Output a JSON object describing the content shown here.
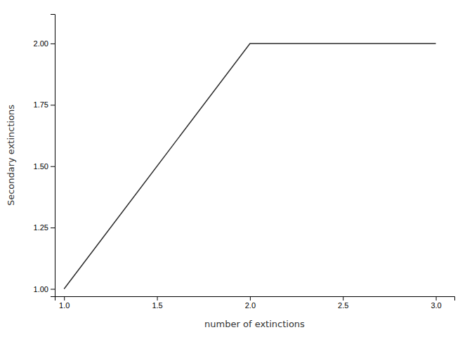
{
  "chart_data": {
    "type": "line",
    "x": [
      1,
      2,
      3
    ],
    "y": [
      1,
      2,
      2
    ],
    "xlabel": "number of extinctions",
    "ylabel": "Secondary extinctions",
    "color": "#2b2b2b",
    "xlim": [
      0.95,
      3.1
    ],
    "ylim": [
      0.97,
      2.12
    ],
    "xticks": [
      {
        "value": 1.0,
        "label": "1.0"
      },
      1.5,
      {
        "value": 2.0,
        "label": "2.0"
      },
      2.5,
      {
        "value": 3.0,
        "label": "3.0"
      }
    ],
    "yticks": [
      {
        "value": 1.0,
        "label": "1.00"
      },
      1.25,
      {
        "value": 1.5,
        "label": "1.50"
      },
      1.75,
      {
        "value": 2.0,
        "label": "2.00"
      }
    ],
    "grid": false
  }
}
